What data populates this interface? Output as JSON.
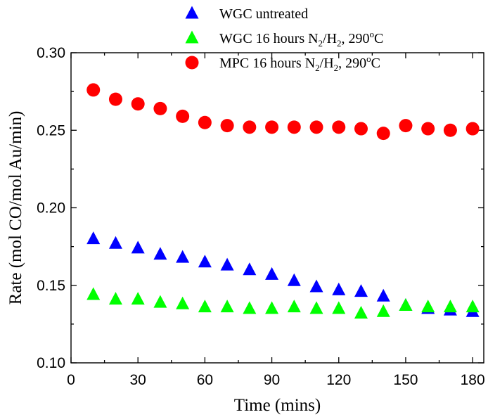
{
  "chart_data": {
    "type": "scatter",
    "title": "",
    "xlabel": "Time (mins)",
    "ylabel": "Rate (mol CO/mol Au/min)",
    "xlim": [
      0,
      185
    ],
    "ylim": [
      0.1,
      0.3
    ],
    "xticks": [
      0,
      30,
      60,
      90,
      120,
      150,
      180
    ],
    "xtick_labels": [
      "0",
      "30",
      "60",
      "90",
      "120",
      "150",
      "180"
    ],
    "yticks": [
      0.1,
      0.15,
      0.2,
      0.25,
      0.3
    ],
    "ytick_labels": [
      "0.10",
      "0.15",
      "0.20",
      "0.25",
      "0.30"
    ],
    "grid": false,
    "legend_position": "top-center",
    "series": [
      {
        "name": "WGC untreated",
        "legend": {
          "prefix": "WGC untreated",
          "sub": "",
          "mid": "",
          "sup": "",
          "suffix": ""
        },
        "marker": "triangle",
        "color": "#0000ff",
        "x": [
          10,
          20,
          30,
          40,
          50,
          60,
          70,
          80,
          90,
          100,
          110,
          120,
          130,
          140,
          150,
          160,
          170,
          180
        ],
        "y": [
          0.18,
          0.177,
          0.174,
          0.17,
          0.168,
          0.165,
          0.163,
          0.16,
          0.157,
          0.153,
          0.149,
          0.147,
          0.146,
          0.143,
          0.137,
          0.135,
          0.134,
          0.133
        ]
      },
      {
        "name": "WGC 16 hours N2/H2, 290oC",
        "legend": {
          "prefix": "WGC 16 hours N",
          "sub": "2",
          "mid": "/H",
          "sub2": "2",
          "mid2": ", 290",
          "sup": "o",
          "suffix": "C"
        },
        "marker": "triangle",
        "color": "#00ff00",
        "x": [
          10,
          20,
          30,
          40,
          50,
          60,
          70,
          80,
          90,
          100,
          110,
          120,
          130,
          140,
          150,
          160,
          170,
          180
        ],
        "y": [
          0.144,
          0.141,
          0.141,
          0.139,
          0.138,
          0.136,
          0.136,
          0.135,
          0.135,
          0.136,
          0.135,
          0.135,
          0.132,
          0.133,
          0.137,
          0.136,
          0.136,
          0.136
        ]
      },
      {
        "name": "MPC 16 hours N2/H2, 290oC",
        "legend": {
          "prefix": "MPC 16 hours N",
          "sub": "2",
          "mid": "/H",
          "sub2": "2",
          "mid2": ", 290",
          "sup": "o",
          "suffix": "C"
        },
        "marker": "circle",
        "color": "#ff0000",
        "x": [
          10,
          20,
          30,
          40,
          50,
          60,
          70,
          80,
          90,
          100,
          110,
          120,
          130,
          140,
          150,
          160,
          170,
          180
        ],
        "y": [
          0.276,
          0.27,
          0.267,
          0.264,
          0.259,
          0.255,
          0.253,
          0.252,
          0.252,
          0.252,
          0.252,
          0.252,
          0.251,
          0.248,
          0.253,
          0.251,
          0.25,
          0.251
        ]
      }
    ]
  }
}
